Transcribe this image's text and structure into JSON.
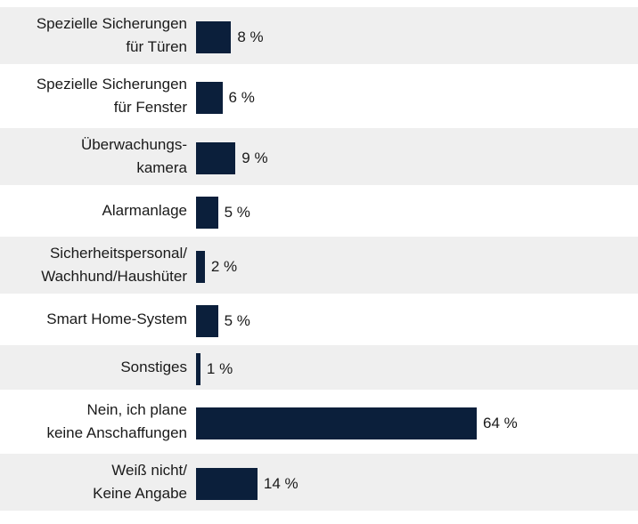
{
  "chart_data": {
    "type": "bar",
    "orientation": "horizontal",
    "categories": [
      "Spezielle Sicherungen\nfür Türen",
      "Spezielle Sicherungen\nfür Fenster",
      "Überwachungs-\nkamera",
      "Alarmanlage",
      "Sicherheitspersonal/\nWachhund/Haushüter",
      "Smart Home-System",
      "Sonstiges",
      "Nein, ich plane\nkeine Anschaffungen",
      "Weiß nicht/\nKeine Angabe"
    ],
    "values": [
      8,
      6,
      9,
      5,
      2,
      5,
      1,
      64,
      14
    ],
    "value_labels": [
      "8 %",
      "6 %",
      "9 %",
      "5 %",
      "2 %",
      "5 %",
      "1 %",
      "64 %",
      "14 %"
    ],
    "color": "#0b1f3b"
  }
}
